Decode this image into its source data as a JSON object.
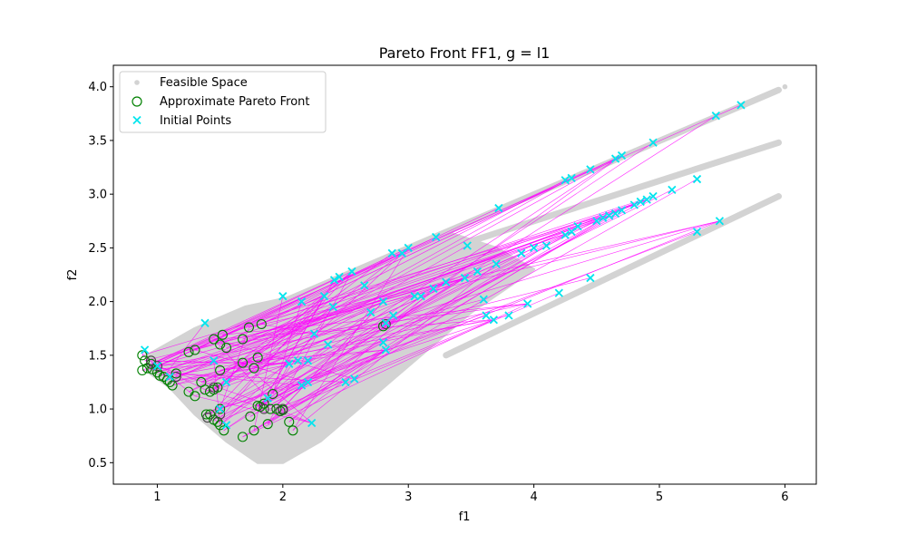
{
  "chart_data": {
    "type": "scatter",
    "title": "Pareto Front FF1, g = l1",
    "xlabel": "f1",
    "ylabel": "f2",
    "xlim": [
      0.65,
      6.25
    ],
    "ylim": [
      0.3,
      4.2
    ],
    "xticks": [
      1,
      2,
      3,
      4,
      5,
      6
    ],
    "yticks": [
      0.5,
      1.0,
      1.5,
      2.0,
      2.5,
      3.0,
      3.5,
      4.0
    ],
    "grid": false,
    "legend_position": "top-left",
    "colors": {
      "feasible": "#d3d3d3",
      "pareto": "#008000",
      "initial": "#00e5ee",
      "lines": "#ff00ff",
      "pareto_older": "#444444",
      "highlight": "#6666ff"
    },
    "series": [
      {
        "name": "Feasible Space",
        "marker": "dot",
        "regions": [
          {
            "shape": "band",
            "from": [
              1.0,
              1.5
            ],
            "to": [
              5.95,
              3.97
            ]
          },
          {
            "shape": "band",
            "from": [
              2.0,
              2.0
            ],
            "to": [
              5.95,
              3.48
            ]
          },
          {
            "shape": "band",
            "from": [
              3.3,
              1.5
            ],
            "to": [
              5.95,
              2.98
            ]
          },
          {
            "shape": "blob",
            "outline": [
              [
                0.92,
                1.5
              ],
              [
                1.3,
                1.75
              ],
              [
                1.7,
                1.95
              ],
              [
                2.1,
                2.05
              ],
              [
                2.6,
                2.3
              ],
              [
                3.3,
                2.65
              ],
              [
                3.7,
                2.5
              ],
              [
                4.0,
                2.3
              ],
              [
                3.5,
                1.9
              ],
              [
                3.2,
                1.6
              ],
              [
                2.9,
                1.3
              ],
              [
                2.6,
                1.0
              ],
              [
                2.3,
                0.7
              ],
              [
                2.0,
                0.5
              ],
              [
                1.8,
                0.5
              ],
              [
                1.55,
                0.7
              ],
              [
                1.3,
                0.95
              ],
              [
                1.1,
                1.2
              ],
              [
                0.92,
                1.35
              ]
            ]
          }
        ],
        "isolated": [
          [
            6.0,
            4.0
          ]
        ]
      },
      {
        "name": "Approximate Pareto Front",
        "marker": "open-circle",
        "points": [
          [
            0.88,
            1.5
          ],
          [
            0.9,
            1.45
          ],
          [
            0.95,
            1.42
          ],
          [
            0.92,
            1.38
          ],
          [
            0.88,
            1.36
          ],
          [
            0.96,
            1.37
          ],
          [
            1.0,
            1.34
          ],
          [
            1.05,
            1.3
          ],
          [
            1.1,
            1.25
          ],
          [
            1.15,
            1.33
          ],
          [
            1.02,
            1.31
          ],
          [
            1.08,
            1.27
          ],
          [
            1.12,
            1.22
          ],
          [
            1.25,
            1.16
          ],
          [
            1.3,
            1.12
          ],
          [
            1.35,
            1.25
          ],
          [
            1.38,
            1.18
          ],
          [
            1.42,
            1.16
          ],
          [
            1.45,
            1.18
          ],
          [
            1.48,
            1.2
          ],
          [
            1.5,
            1.36
          ],
          [
            1.25,
            1.53
          ],
          [
            1.3,
            1.55
          ],
          [
            1.45,
            1.65
          ],
          [
            1.5,
            1.6
          ],
          [
            1.55,
            1.57
          ],
          [
            1.52,
            1.69
          ],
          [
            1.68,
            1.65
          ],
          [
            1.73,
            1.76
          ],
          [
            1.83,
            1.79
          ],
          [
            1.68,
            1.43
          ],
          [
            1.77,
            1.38
          ],
          [
            1.8,
            1.48
          ],
          [
            1.39,
            0.95
          ],
          [
            1.42,
            0.95
          ],
          [
            1.45,
            0.9
          ],
          [
            1.48,
            0.88
          ],
          [
            1.5,
            0.85
          ],
          [
            1.53,
            0.8
          ],
          [
            1.5,
            1.0
          ],
          [
            1.68,
            0.74
          ],
          [
            1.74,
            0.93
          ],
          [
            1.77,
            0.8
          ],
          [
            1.8,
            1.03
          ],
          [
            1.85,
            1.05
          ],
          [
            1.9,
            1.0
          ],
          [
            1.95,
            1.0
          ],
          [
            1.98,
            0.98
          ],
          [
            2.0,
            0.99
          ],
          [
            1.92,
            1.14
          ],
          [
            1.82,
            1.02
          ],
          [
            1.88,
            0.86
          ],
          [
            2.05,
            0.88
          ],
          [
            2.08,
            0.8
          ],
          [
            2.8,
            1.77
          ]
        ],
        "older_points": [
          [
            0.95,
            1.45
          ],
          [
            1.0,
            1.4
          ],
          [
            1.15,
            1.3
          ],
          [
            1.45,
            1.2
          ],
          [
            1.5,
            0.95
          ],
          [
            1.4,
            0.92
          ],
          [
            2.0,
            1.0
          ],
          [
            1.85,
            1.0
          ],
          [
            2.82,
            1.79
          ]
        ]
      },
      {
        "name": "Initial Points",
        "marker": "x",
        "points": [
          [
            0.9,
            1.55
          ],
          [
            1.38,
            1.8
          ],
          [
            1.1,
            1.3
          ],
          [
            1.0,
            1.4
          ],
          [
            1.5,
            1.0
          ],
          [
            1.55,
            0.85
          ],
          [
            2.0,
            2.05
          ],
          [
            2.15,
            2.0
          ],
          [
            2.05,
            1.42
          ],
          [
            2.12,
            1.45
          ],
          [
            2.2,
            1.45
          ],
          [
            2.2,
            1.25
          ],
          [
            2.25,
            1.7
          ],
          [
            2.33,
            2.05
          ],
          [
            2.36,
            1.6
          ],
          [
            2.41,
            2.2
          ],
          [
            2.45,
            2.23
          ],
          [
            2.5,
            1.25
          ],
          [
            2.55,
            2.28
          ],
          [
            2.57,
            1.28
          ],
          [
            2.65,
            2.15
          ],
          [
            2.7,
            1.9
          ],
          [
            2.8,
            1.62
          ],
          [
            2.82,
            1.55
          ],
          [
            2.82,
            1.8
          ],
          [
            2.88,
            1.87
          ],
          [
            2.87,
            2.45
          ],
          [
            2.95,
            2.45
          ],
          [
            3.0,
            2.5
          ],
          [
            3.05,
            2.05
          ],
          [
            3.1,
            2.05
          ],
          [
            3.2,
            2.12
          ],
          [
            3.22,
            2.6
          ],
          [
            3.45,
            2.22
          ],
          [
            3.47,
            2.52
          ],
          [
            3.55,
            2.28
          ],
          [
            3.6,
            2.02
          ],
          [
            3.62,
            1.87
          ],
          [
            3.68,
            1.83
          ],
          [
            3.7,
            2.35
          ],
          [
            3.72,
            2.87
          ],
          [
            3.8,
            1.87
          ],
          [
            3.9,
            2.45
          ],
          [
            3.95,
            1.98
          ],
          [
            4.0,
            2.5
          ],
          [
            4.1,
            2.52
          ],
          [
            4.2,
            2.08
          ],
          [
            4.25,
            2.62
          ],
          [
            4.3,
            2.65
          ],
          [
            4.35,
            2.7
          ],
          [
            4.45,
            2.22
          ],
          [
            4.5,
            2.75
          ],
          [
            4.55,
            2.78
          ],
          [
            4.6,
            2.8
          ],
          [
            4.65,
            2.82
          ],
          [
            4.7,
            2.85
          ],
          [
            4.8,
            2.9
          ],
          [
            4.85,
            2.93
          ],
          [
            4.9,
            2.95
          ],
          [
            4.95,
            2.98
          ],
          [
            5.1,
            3.04
          ],
          [
            5.3,
            3.14
          ],
          [
            5.3,
            2.65
          ],
          [
            5.48,
            2.75
          ],
          [
            4.25,
            3.13
          ],
          [
            4.3,
            3.15
          ],
          [
            4.45,
            3.23
          ],
          [
            4.65,
            3.33
          ],
          [
            4.7,
            3.36
          ],
          [
            4.95,
            3.48
          ],
          [
            5.45,
            3.73
          ],
          [
            5.65,
            3.83
          ],
          [
            2.15,
            1.22
          ],
          [
            2.23,
            0.87
          ],
          [
            1.88,
            1.1
          ],
          [
            1.55,
            1.25
          ],
          [
            1.45,
            1.45
          ],
          [
            2.4,
            1.95
          ],
          [
            2.8,
            2.0
          ],
          [
            3.3,
            2.18
          ]
        ]
      }
    ],
    "connecting_lines": "magenta lines join each Initial Point to a point on the Approximate Pareto Front",
    "legend": [
      "Feasible Space",
      "Approximate Pareto Front",
      "Initial Points"
    ]
  }
}
